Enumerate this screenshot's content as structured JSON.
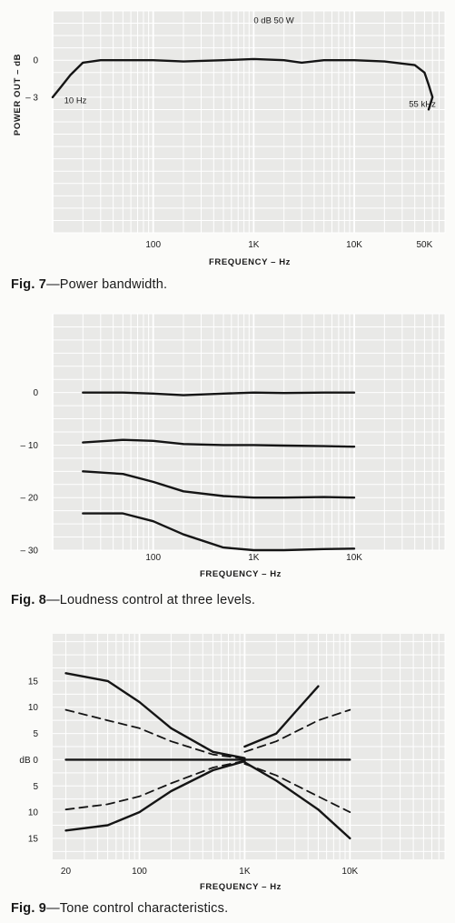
{
  "chart_data": [
    {
      "type": "line",
      "title": "",
      "caption_num": "Fig. 7",
      "caption_text": "—Power bandwidth.",
      "xlabel": "FREQUENCY – Hz",
      "ylabel": "POWER OUT – dB",
      "xscale": "log",
      "xlim": [
        10,
        80000
      ],
      "ylim": [
        -14,
        4
      ],
      "xticks": [
        {
          "value": 100,
          "label": "100"
        },
        {
          "value": 1000,
          "label": "1K"
        },
        {
          "value": 10000,
          "label": "10K"
        },
        {
          "value": 50000,
          "label": "50K"
        }
      ],
      "yticks": [
        {
          "value": 0,
          "label": "0"
        },
        {
          "value": -3,
          "label": "– 3"
        }
      ],
      "annotations": [
        {
          "text": "0 dB  50 W",
          "x": 1000,
          "y": 3
        },
        {
          "text": "10 Hz",
          "x": 13,
          "y": -3.5
        },
        {
          "text": "55 kHz",
          "x": 35000,
          "y": -3.8
        }
      ],
      "series": [
        {
          "style": "solid",
          "x": [
            10,
            12,
            15,
            20,
            30,
            50,
            100,
            200,
            500,
            1000,
            2000,
            3000,
            5000,
            10000,
            20000,
            40000,
            50000,
            55000,
            60000,
            55000
          ],
          "y": [
            -3,
            -2.2,
            -1.2,
            -0.2,
            0,
            0,
            0,
            -0.1,
            0,
            0.1,
            0,
            -0.2,
            0,
            0,
            -0.1,
            -0.4,
            -1,
            -2,
            -3,
            -4
          ]
        }
      ],
      "grid": true
    },
    {
      "type": "line",
      "title": "",
      "caption_num": "Fig. 8",
      "caption_text": "—Loudness control at three levels.",
      "xlabel": "FREQUENCY – Hz",
      "ylabel": "",
      "xscale": "log",
      "xlim": [
        10,
        80000
      ],
      "ylim": [
        -30,
        15
      ],
      "xticks": [
        {
          "value": 100,
          "label": "100"
        },
        {
          "value": 1000,
          "label": "1K"
        },
        {
          "value": 10000,
          "label": "10K"
        }
      ],
      "yticks": [
        {
          "value": 0,
          "label": "0"
        },
        {
          "value": -10,
          "label": "– 10"
        },
        {
          "value": -20,
          "label": "– 20"
        },
        {
          "value": -30,
          "label": "– 30"
        }
      ],
      "series": [
        {
          "style": "solid",
          "x": [
            20,
            50,
            100,
            200,
            500,
            1000,
            2000,
            5000,
            10000
          ],
          "y": [
            0,
            0,
            -0.2,
            -0.5,
            -0.2,
            0,
            -0.1,
            0,
            0
          ]
        },
        {
          "style": "solid",
          "x": [
            20,
            50,
            100,
            200,
            500,
            1000,
            2000,
            5000,
            10000
          ],
          "y": [
            -9.5,
            -9,
            -9.2,
            -9.8,
            -10,
            -10,
            -10.1,
            -10.2,
            -10.3
          ]
        },
        {
          "style": "solid",
          "x": [
            20,
            50,
            100,
            200,
            500,
            1000,
            2000,
            5000,
            10000
          ],
          "y": [
            -15,
            -15.5,
            -17,
            -18.8,
            -19.7,
            -20,
            -20,
            -19.9,
            -20
          ]
        },
        {
          "style": "solid",
          "x": [
            20,
            50,
            100,
            200,
            500,
            1000,
            2000,
            5000,
            10000
          ],
          "y": [
            -23,
            -23,
            -24.5,
            -27,
            -29.5,
            -30,
            -30,
            -29.8,
            -29.7
          ]
        }
      ],
      "grid": true
    },
    {
      "type": "line",
      "title": "",
      "caption_num": "Fig. 9",
      "caption_text": "—Tone control characteristics.",
      "xlabel": "FREQUENCY – Hz",
      "ylabel": "",
      "xscale": "log",
      "xlim": [
        15,
        80000
      ],
      "ylim": [
        -19,
        24
      ],
      "xticks": [
        {
          "value": 20,
          "label": "20"
        },
        {
          "value": 100,
          "label": "100"
        },
        {
          "value": 1000,
          "label": "1K"
        },
        {
          "value": 10000,
          "label": "10K"
        }
      ],
      "yticks": [
        {
          "value": 15,
          "label": "15"
        },
        {
          "value": 10,
          "label": "10"
        },
        {
          "value": 5,
          "label": "5"
        },
        {
          "value": 0,
          "label": "dB 0"
        },
        {
          "value": -5,
          "label": "5"
        },
        {
          "value": -10,
          "label": "10"
        },
        {
          "value": -15,
          "label": "15"
        }
      ],
      "series": [
        {
          "style": "solid",
          "x": [
            20,
            50,
            100,
            200,
            500,
            1000
          ],
          "y": [
            16.5,
            15,
            11,
            6,
            1.5,
            0.3
          ]
        },
        {
          "style": "dashed",
          "x": [
            20,
            50,
            100,
            200,
            500,
            1000
          ],
          "y": [
            9.5,
            7.5,
            6,
            3.5,
            1,
            0.2
          ]
        },
        {
          "style": "solid",
          "x": [
            20,
            10000
          ],
          "y": [
            0,
            0
          ]
        },
        {
          "style": "dashed",
          "x": [
            20,
            50,
            100,
            200,
            500,
            1000
          ],
          "y": [
            -9.5,
            -8.5,
            -7,
            -4.5,
            -1.5,
            -0.2
          ]
        },
        {
          "style": "solid",
          "x": [
            20,
            50,
            100,
            200,
            500,
            1000
          ],
          "y": [
            -13.5,
            -12.5,
            -10,
            -6,
            -2,
            -0.3
          ]
        },
        {
          "style": "solid",
          "x": [
            1000,
            2000,
            3000,
            5000
          ],
          "y": [
            2.5,
            5,
            9,
            14
          ]
        },
        {
          "style": "dashed",
          "x": [
            1000,
            2000,
            5000,
            10000
          ],
          "y": [
            1.5,
            3.5,
            7.5,
            9.5
          ]
        },
        {
          "style": "dashed",
          "x": [
            1000,
            2000,
            5000,
            10000
          ],
          "y": [
            -0.8,
            -3,
            -7,
            -10
          ]
        },
        {
          "style": "solid",
          "x": [
            1000,
            2000,
            5000,
            10000
          ],
          "y": [
            -0.5,
            -4,
            -9.5,
            -15
          ]
        }
      ],
      "grid": true
    }
  ]
}
